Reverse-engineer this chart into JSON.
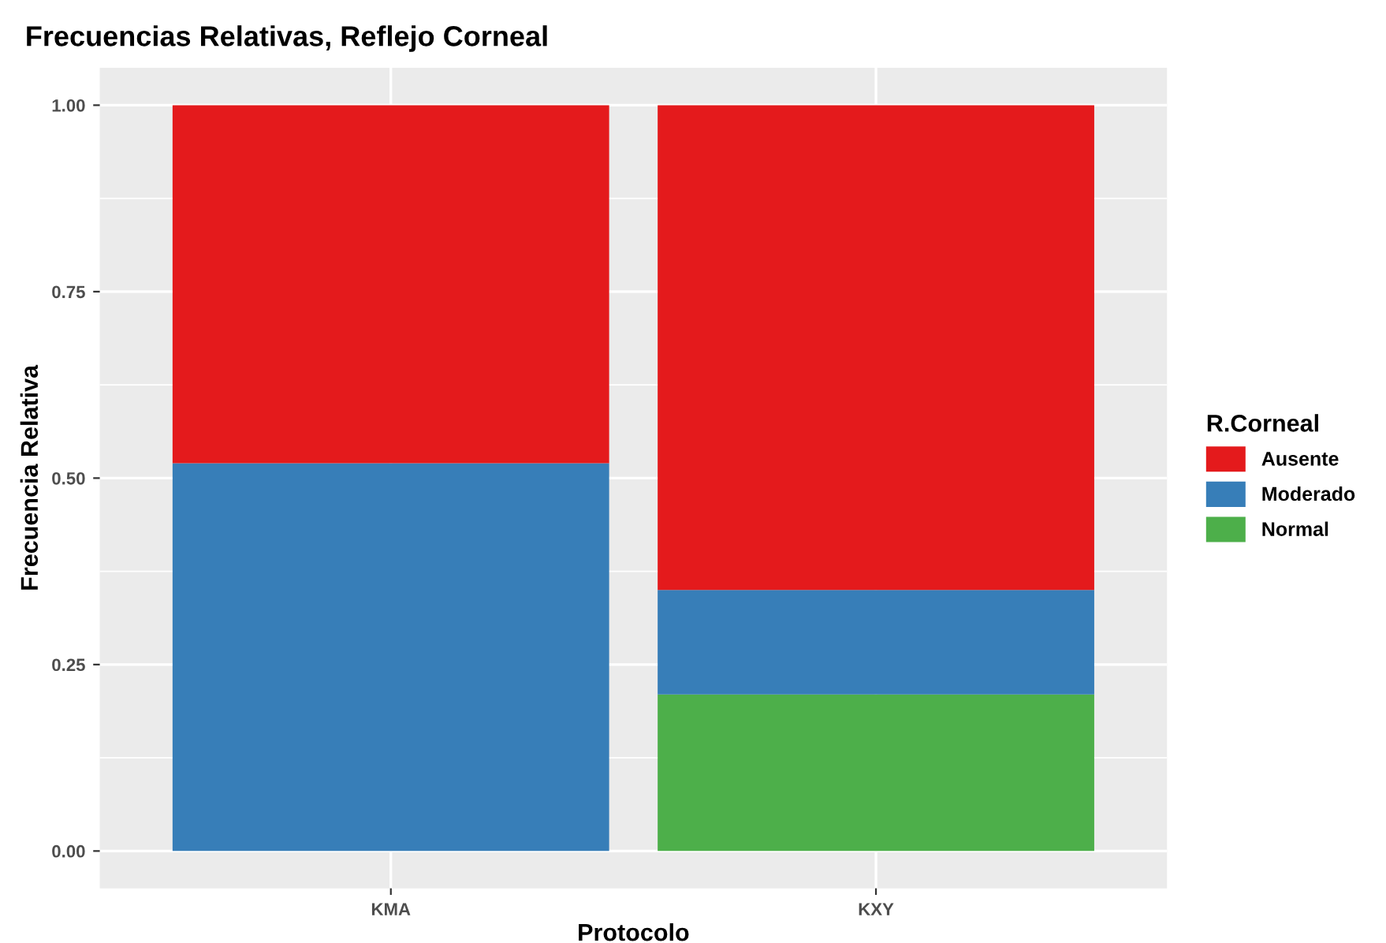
{
  "chart_data": {
    "type": "bar",
    "title": "Frecuencias Relativas, Reflejo Corneal",
    "xlabel": "Protocolo",
    "ylabel": "Frecuencia Relativa",
    "legend_title": "R.Corneal",
    "categories": [
      "KMA",
      "KXY"
    ],
    "stacked": true,
    "series": [
      {
        "name": "Normal",
        "color": "#4daf4a",
        "values": [
          0,
          0.21
        ]
      },
      {
        "name": "Moderado",
        "color": "#377eb8",
        "values": [
          0.52,
          0.14
        ]
      },
      {
        "name": "Ausente",
        "color": "#e41a1c",
        "values": [
          0.48,
          0.65
        ]
      }
    ],
    "ylim": [
      -0.05,
      1.05
    ],
    "yticks": [
      {
        "value": 0,
        "label": "0.00"
      },
      {
        "value": 0.25,
        "label": "0.25"
      },
      {
        "value": 0.5,
        "label": "0.50"
      },
      {
        "value": 0.75,
        "label": "0.75"
      },
      {
        "value": 1,
        "label": "1.00"
      }
    ],
    "grid": true,
    "legend": "right"
  }
}
